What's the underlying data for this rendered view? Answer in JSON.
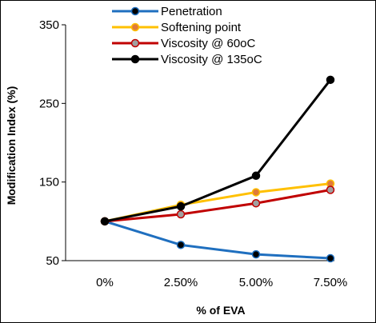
{
  "chart_data": {
    "type": "line",
    "title": "",
    "xlabel": "% of EVA",
    "ylabel": "Modification Index (%)",
    "categories": [
      "0%",
      "2.50%",
      "5.00%",
      "7.50%"
    ],
    "ylim": [
      50,
      350
    ],
    "yticks": [
      50,
      150,
      250,
      350
    ],
    "grid": false,
    "legend_position": "top-left",
    "series": [
      {
        "name": "Penetration",
        "values": [
          100,
          70,
          58,
          53
        ],
        "color": "#1f6fbf",
        "marker_fill": "#000000"
      },
      {
        "name": "Softening point",
        "values": [
          100,
          121,
          137,
          148
        ],
        "color": "#ffc000",
        "marker_fill": "#e07b39"
      },
      {
        "name": "Viscosity @ 60oC",
        "values": [
          100,
          109,
          123,
          140
        ],
        "color": "#c00000",
        "marker_fill": "#a0a0a0"
      },
      {
        "name": "Viscosity @ 135oC",
        "values": [
          100,
          119,
          158,
          280
        ],
        "color": "#000000",
        "marker_fill": "#000000"
      }
    ]
  }
}
